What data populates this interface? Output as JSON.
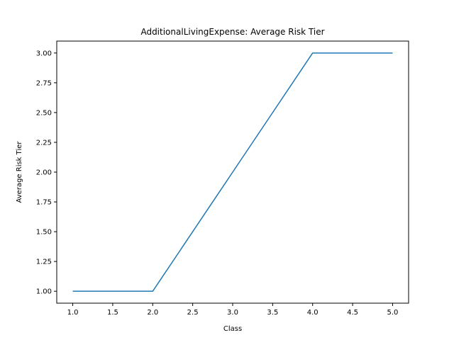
{
  "chart_data": {
    "type": "line",
    "title": "AdditionalLivingExpense: Average Risk Tier",
    "xlabel": "Class",
    "ylabel": "Average Risk Tier",
    "x": [
      1.0,
      2.0,
      3.0,
      4.0,
      5.0
    ],
    "series": [
      {
        "values": [
          1.0,
          1.0,
          2.0,
          3.0,
          3.0
        ],
        "color": "#1f77b4"
      }
    ],
    "xlim": [
      0.8,
      5.2
    ],
    "ylim": [
      0.9,
      3.1
    ],
    "xticks": [
      "1.0",
      "1.5",
      "2.0",
      "2.5",
      "3.0",
      "3.5",
      "4.0",
      "4.5",
      "5.0"
    ],
    "yticks": [
      "1.00",
      "1.25",
      "1.50",
      "1.75",
      "2.00",
      "2.25",
      "2.50",
      "2.75",
      "3.00"
    ],
    "grid": false,
    "legend": "none"
  }
}
